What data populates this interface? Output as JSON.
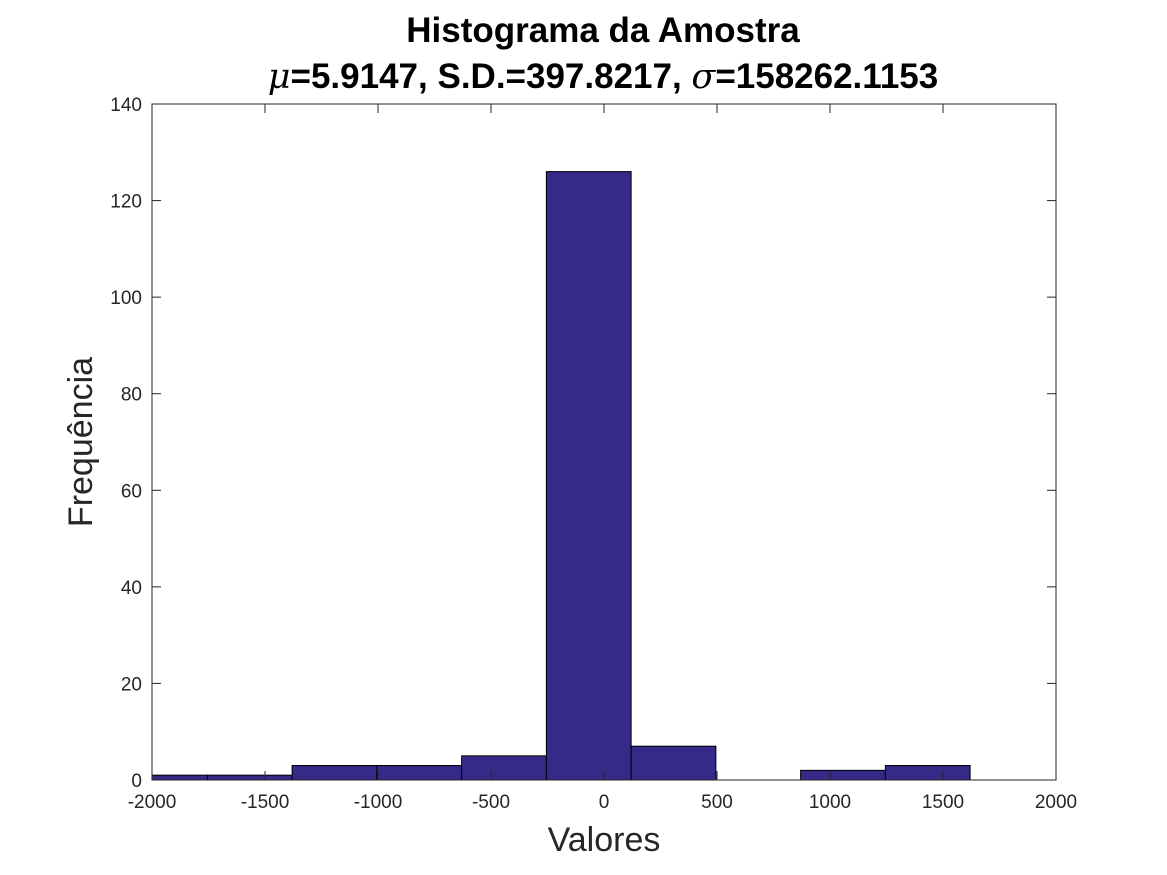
{
  "chart_data": {
    "type": "bar",
    "title": "Histograma da Amostra",
    "subtitle": {
      "mu_symbol": "μ",
      "mu_text": "=5.9147, S.D.=397.8217, ",
      "sigma_symbol": "σ",
      "sigma_text": "=158262.1153"
    },
    "xlabel": "Valores",
    "ylabel": "Frequência",
    "xlim": [
      -2000,
      2000
    ],
    "ylim": [
      0,
      140
    ],
    "xticks": [
      -2000,
      -1500,
      -1000,
      -500,
      0,
      500,
      1000,
      1500,
      2000
    ],
    "yticks": [
      0,
      20,
      40,
      60,
      80,
      100,
      120,
      140
    ],
    "bins": [
      {
        "x0": -2130,
        "x1": -1755,
        "count": 1
      },
      {
        "x0": -1755,
        "x1": -1380,
        "count": 1
      },
      {
        "x0": -1380,
        "x1": -1005,
        "count": 3
      },
      {
        "x0": -1005,
        "x1": -630,
        "count": 3
      },
      {
        "x0": -630,
        "x1": -255,
        "count": 5
      },
      {
        "x0": -255,
        "x1": 120,
        "count": 126
      },
      {
        "x0": 120,
        "x1": 495,
        "count": 7
      },
      {
        "x0": 495,
        "x1": 870,
        "count": 0
      },
      {
        "x0": 870,
        "x1": 1245,
        "count": 2
      },
      {
        "x0": 1245,
        "x1": 1620,
        "count": 3
      }
    ],
    "bar_color": "#352a87",
    "edge_color": "#000000",
    "grid": false
  }
}
